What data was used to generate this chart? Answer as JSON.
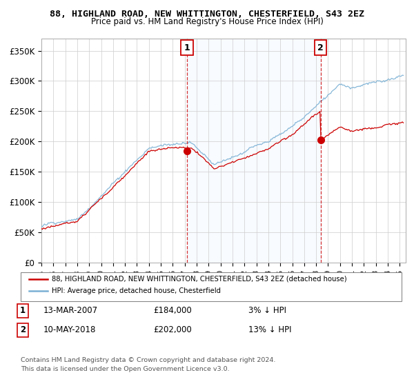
{
  "title": "88, HIGHLAND ROAD, NEW WHITTINGTON, CHESTERFIELD, S43 2EZ",
  "subtitle": "Price paid vs. HM Land Registry's House Price Index (HPI)",
  "ylabel_ticks": [
    "£0",
    "£50K",
    "£100K",
    "£150K",
    "£200K",
    "£250K",
    "£300K",
    "£350K"
  ],
  "ytick_values": [
    0,
    50000,
    100000,
    150000,
    200000,
    250000,
    300000,
    350000
  ],
  "ylim": [
    0,
    370000
  ],
  "sale1_date": "13-MAR-2007",
  "sale1_price": 184000,
  "sale1_pct": "3%",
  "sale2_date": "10-MAY-2018",
  "sale2_price": 202000,
  "sale2_pct": "13%",
  "sale1_x": 2007.2,
  "sale2_x": 2018.37,
  "line_color_red": "#cc0000",
  "line_color_blue": "#7ab0d4",
  "shade_color": "#ddeeff",
  "vline_color": "#cc0000",
  "background_color": "#ffffff",
  "legend_label_red": "88, HIGHLAND ROAD, NEW WHITTINGTON, CHESTERFIELD, S43 2EZ (detached house)",
  "legend_label_blue": "HPI: Average price, detached house, Chesterfield",
  "footnote": "Contains HM Land Registry data © Crown copyright and database right 2024.\nThis data is licensed under the Open Government Licence v3.0.",
  "xmin": 1995.0,
  "xmax": 2025.5
}
